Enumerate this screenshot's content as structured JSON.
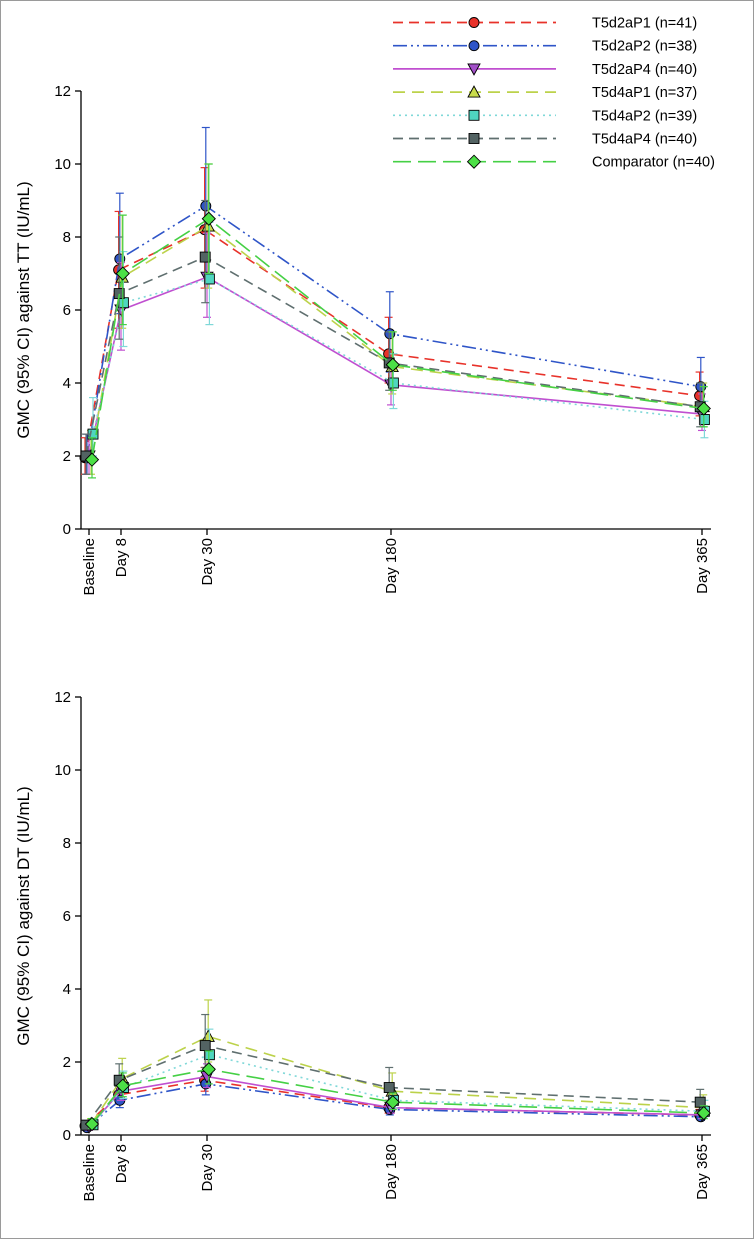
{
  "legend": [
    {
      "label": "T5d2aP1 (n=41)",
      "key": "s1"
    },
    {
      "label": "T5d2aP2 (n=38)",
      "key": "s2"
    },
    {
      "label": "T5d2aP4 (n=40)",
      "key": "s3"
    },
    {
      "label": "T5d4aP1 (n=37)",
      "key": "s4"
    },
    {
      "label": "T5d4aP2 (n=39)",
      "key": "s5"
    },
    {
      "label": "T5d4aP4 (n=40)",
      "key": "s6"
    },
    {
      "label": "Comparator (n=40)",
      "key": "s7"
    }
  ],
  "series_style": {
    "s1": {
      "color": "#e8322a",
      "fill": "#e8322a",
      "dash": "10,6",
      "marker": "circle"
    },
    "s2": {
      "color": "#2f55c8",
      "fill": "#2f55c8",
      "dash": "14,4,2,4,2,4",
      "marker": "circle"
    },
    "s3": {
      "color": "#c04fd0",
      "fill": "#a24fc8",
      "dash": "",
      "marker": "triangle-down"
    },
    "s4": {
      "color": "#bcd24a",
      "fill": "#c9dc4c",
      "dash": "12,7",
      "marker": "triangle-up"
    },
    "s5": {
      "color": "#7fd8d8",
      "fill": "#4fd6c0",
      "dash": "2,4",
      "marker": "square"
    },
    "s6": {
      "color": "#5f6f6f",
      "fill": "#536363",
      "dash": "10,6",
      "marker": "square"
    },
    "s7": {
      "color": "#45d045",
      "fill": "#4ce046",
      "dash": "18,7",
      "marker": "diamond"
    }
  },
  "chart_data": [
    {
      "type": "line",
      "title": "",
      "xlabel": "",
      "ylabel": "GMC (95% CI) against TT (IU/mL)",
      "ylim": [
        0,
        12
      ],
      "yticks": [
        0,
        2,
        4,
        6,
        8,
        10,
        12
      ],
      "categories": [
        "Baseline",
        "Day 8",
        "Day 30",
        "Day 180",
        "Day 365"
      ],
      "x_days": [
        0,
        8,
        30,
        180,
        365
      ],
      "series": [
        {
          "name": "T5d2aP1 (n=41)",
          "key": "s1",
          "values": [
            1.95,
            7.1,
            8.2,
            4.8,
            3.65
          ],
          "ci_low": [
            1.5,
            5.5,
            6.6,
            4.0,
            3.1
          ],
          "ci_high": [
            2.5,
            8.7,
            9.9,
            5.8,
            4.3
          ]
        },
        {
          "name": "T5d2aP2 (n=38)",
          "key": "s2",
          "values": [
            1.95,
            7.4,
            8.85,
            5.35,
            3.9
          ],
          "ci_low": [
            1.5,
            5.9,
            7.0,
            4.3,
            3.2
          ],
          "ci_high": [
            2.6,
            9.2,
            11.0,
            6.5,
            4.7
          ]
        },
        {
          "name": "T5d2aP4 (n=40)",
          "key": "s3",
          "values": [
            2.0,
            6.0,
            6.9,
            3.95,
            3.15
          ],
          "ci_low": [
            1.5,
            4.9,
            5.8,
            3.4,
            2.7
          ],
          "ci_high": [
            2.6,
            7.3,
            8.1,
            4.6,
            3.7
          ]
        },
        {
          "name": "T5d4aP1 (n=37)",
          "key": "s4",
          "values": [
            2.0,
            6.9,
            8.3,
            4.45,
            3.35
          ],
          "ci_low": [
            1.5,
            5.5,
            6.6,
            3.7,
            2.8
          ],
          "ci_high": [
            2.7,
            8.6,
            10.0,
            5.4,
            4.0
          ]
        },
        {
          "name": "T5d4aP2 (n=39)",
          "key": "s5",
          "values": [
            2.6,
            6.2,
            6.85,
            4.0,
            3.0
          ],
          "ci_low": [
            2.0,
            5.0,
            5.6,
            3.3,
            2.5
          ],
          "ci_high": [
            3.6,
            7.6,
            8.4,
            4.8,
            3.5
          ]
        },
        {
          "name": "T5d4aP4 (n=40)",
          "key": "s6",
          "values": [
            2.0,
            6.45,
            7.45,
            4.55,
            3.35
          ],
          "ci_low": [
            1.5,
            5.2,
            6.2,
            3.8,
            2.8
          ],
          "ci_high": [
            2.6,
            8.0,
            9.0,
            5.4,
            4.0
          ]
        },
        {
          "name": "Comparator (n=40)",
          "key": "s7",
          "values": [
            1.9,
            7.0,
            8.5,
            4.5,
            3.3
          ],
          "ci_low": [
            1.4,
            5.6,
            7.0,
            3.8,
            2.8
          ],
          "ci_high": [
            2.5,
            8.6,
            10.0,
            5.4,
            3.9
          ]
        }
      ]
    },
    {
      "type": "line",
      "title": "",
      "xlabel": "",
      "ylabel": "GMC (95% CI) against DT (IU/mL)",
      "ylim": [
        0,
        12
      ],
      "yticks": [
        0,
        2,
        4,
        6,
        8,
        10,
        12
      ],
      "categories": [
        "Baseline",
        "Day 8",
        "Day 30",
        "Day 180",
        "Day 365"
      ],
      "x_days": [
        0,
        8,
        30,
        180,
        365
      ],
      "series": [
        {
          "name": "T5d2aP1 (n=41)",
          "key": "s1",
          "values": [
            0.25,
            1.1,
            1.5,
            0.75,
            0.55
          ],
          "ci_low": [
            0.15,
            0.85,
            1.2,
            0.6,
            0.45
          ],
          "ci_high": [
            0.35,
            1.4,
            1.85,
            0.95,
            0.7
          ]
        },
        {
          "name": "T5d2aP2 (n=38)",
          "key": "s2",
          "values": [
            0.2,
            0.95,
            1.4,
            0.7,
            0.5
          ],
          "ci_low": [
            0.12,
            0.75,
            1.1,
            0.55,
            0.4
          ],
          "ci_high": [
            0.3,
            1.2,
            1.75,
            0.9,
            0.65
          ]
        },
        {
          "name": "T5d2aP4 (n=40)",
          "key": "s3",
          "values": [
            0.22,
            1.2,
            1.6,
            0.75,
            0.55
          ],
          "ci_low": [
            0.13,
            0.95,
            1.3,
            0.6,
            0.45
          ],
          "ci_high": [
            0.32,
            1.5,
            1.95,
            0.95,
            0.7
          ]
        },
        {
          "name": "T5d4aP1 (n=37)",
          "key": "s4",
          "values": [
            0.3,
            1.55,
            2.7,
            1.2,
            0.75
          ],
          "ci_low": [
            0.18,
            1.2,
            2.0,
            0.9,
            0.55
          ],
          "ci_high": [
            0.45,
            2.1,
            3.7,
            1.7,
            1.1
          ]
        },
        {
          "name": "T5d4aP2 (n=39)",
          "key": "s5",
          "values": [
            0.28,
            1.3,
            2.2,
            0.95,
            0.65
          ],
          "ci_low": [
            0.17,
            1.0,
            1.7,
            0.75,
            0.5
          ],
          "ci_high": [
            0.42,
            1.75,
            2.9,
            1.3,
            0.95
          ]
        },
        {
          "name": "T5d4aP4 (n=40)",
          "key": "s6",
          "values": [
            0.27,
            1.5,
            2.45,
            1.3,
            0.9
          ],
          "ci_low": [
            0.16,
            1.15,
            1.85,
            0.95,
            0.65
          ],
          "ci_high": [
            0.4,
            1.95,
            3.3,
            1.85,
            1.25
          ]
        },
        {
          "name": "Comparator (n=40)",
          "key": "s7",
          "values": [
            0.3,
            1.35,
            1.8,
            0.9,
            0.6
          ],
          "ci_low": [
            0.18,
            1.05,
            1.4,
            0.7,
            0.45
          ],
          "ci_high": [
            0.45,
            1.7,
            2.3,
            1.15,
            0.8
          ]
        }
      ]
    }
  ]
}
